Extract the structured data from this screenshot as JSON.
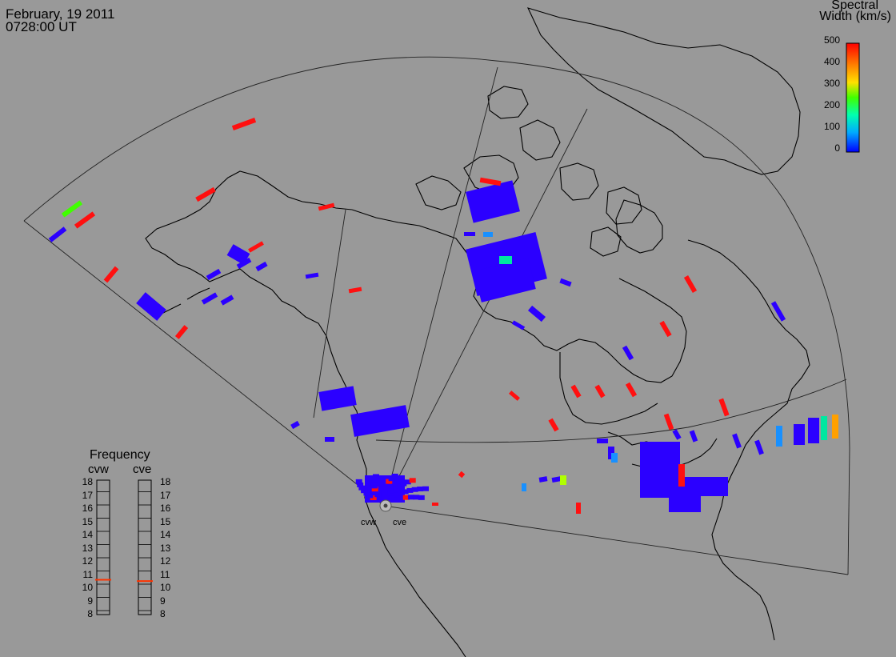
{
  "header": {
    "date": "February, 19 2011",
    "time": "0728:00 UT"
  },
  "colorbar": {
    "title_line1": "Spectral",
    "title_line2": "Width (km/s)",
    "ticks": [
      "500",
      "400",
      "300",
      "200",
      "100",
      "0"
    ],
    "range": [
      0,
      500
    ],
    "colors": [
      "#0000ff",
      "#00aaff",
      "#00ffb0",
      "#40ff00",
      "#ffe000",
      "#ff8000",
      "#ff0000"
    ]
  },
  "frequency_panel": {
    "title": "Frequency",
    "radars": [
      "cvw",
      "cve"
    ],
    "levels": [
      "18",
      "17",
      "16",
      "15",
      "14",
      "13",
      "12",
      "11",
      "10",
      "9",
      "8"
    ],
    "current_mhz": {
      "cvw": 10.7,
      "cve": 10.6
    },
    "marker_color": "#ff3300"
  },
  "radars": {
    "site_labels": [
      "cvw",
      "cve"
    ]
  },
  "colors": {
    "background": "#999999",
    "low_width": "#2b00ff",
    "high_width": "#ff1010"
  }
}
